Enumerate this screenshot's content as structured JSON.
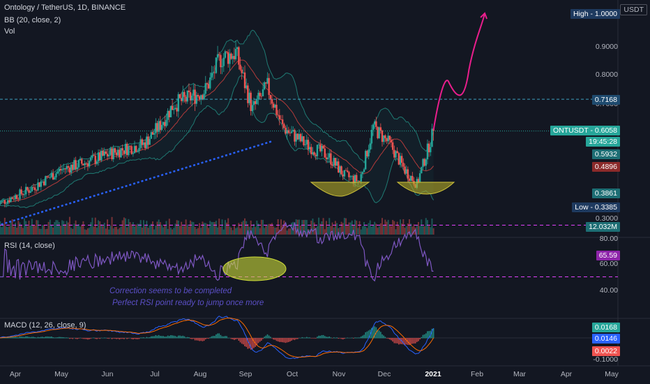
{
  "header": {
    "symbol_line": "Ontology / TetherUS, 1D, BINANCE",
    "bb_line": "BB (20, close, 2)",
    "vol_line": "Vol",
    "quote_currency": "USDT"
  },
  "price_axis": {
    "ticks": [
      {
        "label": "0.9000",
        "value": 0.9
      },
      {
        "label": "0.8000",
        "value": 0.8
      },
      {
        "label": "0.7000",
        "value": 0.7
      },
      {
        "label": "0.3000",
        "value": 0.3
      }
    ],
    "tags": {
      "high": {
        "text": "High - 1.0000",
        "value": 1.0,
        "color": "#1e3a5f"
      },
      "resistance": {
        "text": "0.7168",
        "value": 0.7168,
        "color": "#1e4a6e"
      },
      "last": {
        "text": "ONTUSDT - 0.6058",
        "value": 0.6058,
        "color": "#26a69a"
      },
      "countdown": {
        "text": "19:45:28",
        "color": "#26a69a"
      },
      "bb_upper": {
        "text": "0.5932",
        "value": 0.5932,
        "color": "#1d6e74"
      },
      "bb_basis": {
        "text": "0.4896",
        "value": 0.4896,
        "color": "#8b2a2a"
      },
      "bb_lower": {
        "text": "0.3861",
        "value": 0.3861,
        "color": "#1d6e74"
      },
      "low": {
        "text": "Low - 0.3385",
        "value": 0.3385,
        "color": "#1e3a5f"
      },
      "volume": {
        "text": "12.032M",
        "color": "#1d6e74"
      }
    }
  },
  "rsi": {
    "title": "RSI (14, close)",
    "ticks": [
      {
        "label": "80.00",
        "value": 80
      },
      {
        "label": "60.00",
        "value": 60
      },
      {
        "label": "40.00",
        "value": 40
      }
    ],
    "value_tag": {
      "text": "65.59",
      "value": 65.59,
      "color": "#8e24aa"
    },
    "upper_band": 70,
    "lower_band": 30,
    "notes": [
      "Correction seems to be completed",
      "Perfect RSI point ready to jump once more"
    ]
  },
  "macd": {
    "title": "MACD (12, 26, close, 9)",
    "ticks": [
      {
        "label": "-0.1000",
        "value": -0.1
      }
    ],
    "tags": [
      {
        "text": "0.0168",
        "color": "#26a69a"
      },
      {
        "text": "0.0146",
        "color": "#2962ff"
      },
      {
        "text": "0.0022",
        "color": "#ef5350"
      }
    ]
  },
  "time_axis": [
    "Apr",
    "May",
    "Jun",
    "Jul",
    "Aug",
    "Sep",
    "Oct",
    "Nov",
    "Dec",
    "2021",
    "Feb",
    "Mar",
    "Apr",
    "May"
  ],
  "chart_data": {
    "type": "candlestick",
    "title": "Ontology / TetherUS, 1D, BINANCE",
    "y_unit": "USDT",
    "ylim": [
      0.27,
      1.02
    ],
    "price_path": [
      {
        "date": "2020-03-20",
        "close": 0.35
      },
      {
        "date": "2020-04-10",
        "close": 0.4
      },
      {
        "date": "2020-05-01",
        "close": 0.47
      },
      {
        "date": "2020-05-20",
        "close": 0.5
      },
      {
        "date": "2020-06-10",
        "close": 0.54
      },
      {
        "date": "2020-06-25",
        "close": 0.56
      },
      {
        "date": "2020-07-05",
        "close": 0.62
      },
      {
        "date": "2020-07-15",
        "close": 0.7
      },
      {
        "date": "2020-07-25",
        "close": 0.72
      },
      {
        "date": "2020-08-05",
        "close": 0.75
      },
      {
        "date": "2020-08-15",
        "close": 0.86
      },
      {
        "date": "2020-08-25",
        "close": 0.88
      },
      {
        "date": "2020-09-05",
        "close": 0.68
      },
      {
        "date": "2020-09-15",
        "close": 0.76
      },
      {
        "date": "2020-09-25",
        "close": 0.62
      },
      {
        "date": "2020-10-10",
        "close": 0.56
      },
      {
        "date": "2020-10-25",
        "close": 0.52
      },
      {
        "date": "2020-11-05",
        "close": 0.45
      },
      {
        "date": "2020-11-15",
        "close": 0.43
      },
      {
        "date": "2020-11-24",
        "close": 0.62
      },
      {
        "date": "2020-12-05",
        "close": 0.56
      },
      {
        "date": "2020-12-15",
        "close": 0.47
      },
      {
        "date": "2020-12-23",
        "close": 0.42
      },
      {
        "date": "2021-01-03",
        "close": 0.6058
      }
    ],
    "resistance_level": 0.7168,
    "support_trendline": [
      {
        "date": "2020-03-20",
        "price": 0.275
      },
      {
        "date": "2020-09-18",
        "price": 0.57
      }
    ],
    "bollinger_last": {
      "upper": 0.5932,
      "basis": 0.4896,
      "lower": 0.3861
    },
    "volume_last": "12.032M",
    "projection_path": [
      {
        "date": "2021-01-03",
        "price": 0.61
      },
      {
        "date": "2021-01-10",
        "price": 0.8
      },
      {
        "date": "2021-01-20",
        "price": 0.72
      },
      {
        "date": "2021-02-05",
        "price": 1.0
      }
    ],
    "rsi_last": 65.59,
    "macd_last": {
      "histogram": 0.0168,
      "macd": 0.0146,
      "signal": 0.0022
    }
  }
}
